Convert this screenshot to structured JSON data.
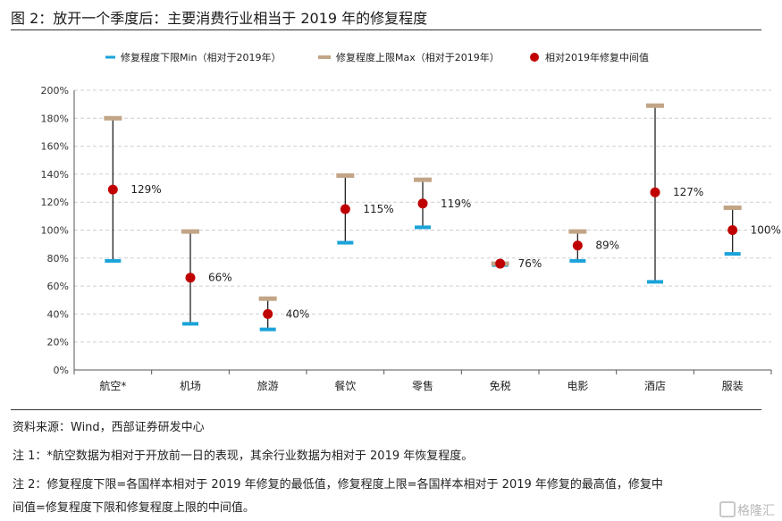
{
  "title": "图 2：放开一个季度后：主要消费行业相当于 2019 年的修复程度",
  "chart_data": {
    "type": "range",
    "title": "",
    "xlabel": "",
    "ylabel": "",
    "ylim": [
      0,
      200
    ],
    "yticks": [
      "0%",
      "20%",
      "40%",
      "60%",
      "80%",
      "100%",
      "120%",
      "140%",
      "160%",
      "180%",
      "200%"
    ],
    "grid": "horizontal-dashed",
    "legend_position": "top",
    "categories": [
      "航空*",
      "机场",
      "旅游",
      "餐饮",
      "零售",
      "免税",
      "电影",
      "酒店",
      "服装"
    ],
    "series": [
      {
        "name": "修复程度下限Min（相对于2019年）",
        "color": "#1aa3d9",
        "values": [
          78,
          33,
          29,
          91,
          102,
          75,
          78,
          63,
          83
        ]
      },
      {
        "name": "修复程度上限Max（相对于2019年）",
        "color": "#c2a587",
        "values": [
          180,
          99,
          51,
          139,
          136,
          76,
          99,
          189,
          116
        ]
      },
      {
        "name": "相对2019年修复中间值",
        "color": "#c00000",
        "values": [
          129,
          66,
          40,
          115,
          119,
          76,
          89,
          127,
          100
        ]
      }
    ],
    "data_labels": [
      "129%",
      "66%",
      "40%",
      "115%",
      "119%",
      "76%",
      "89%",
      "127%",
      "100%"
    ]
  },
  "footer": {
    "source": "资料来源：Wind，西部证券研发中心",
    "note1": "注 1：*航空数据为相对于开放前一日的表现，其余行业数据为相对于 2019 年恢复程度。",
    "note2a": "注 2：修复程度下限=各国样本相对于 2019 年修复的最低值，修复程度上限=各国样本相对于 2019 年修复的最高值，修复中",
    "note2b": "间值=修复程度下限和修复程度上限的中间值。"
  },
  "watermark": "格隆汇"
}
